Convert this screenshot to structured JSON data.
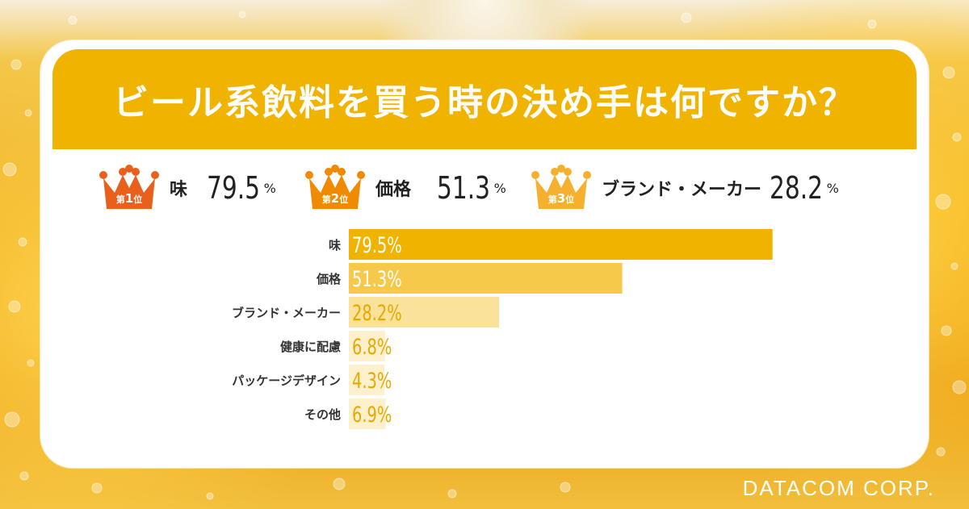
{
  "title": "ビール系飲料を買う時の決め手は何ですか？",
  "ranks": [
    {
      "badge_prefix": "第",
      "badge_num": "1",
      "badge_suffix": "位",
      "name": "味",
      "value": "79.5",
      "pct": "%",
      "color": "#e8601c"
    },
    {
      "badge_prefix": "第",
      "badge_num": "2",
      "badge_suffix": "位",
      "name": "価格",
      "value": "51.3",
      "pct": "%",
      "color": "#f08a00"
    },
    {
      "badge_prefix": "第",
      "badge_num": "3",
      "badge_suffix": "位",
      "name": "ブランド・メーカー",
      "value": "28.2",
      "pct": "%",
      "color": "#f5b12e"
    }
  ],
  "chart_data": {
    "type": "bar",
    "orientation": "horizontal",
    "categories": [
      "味",
      "価格",
      "ブランド・メーカー",
      "健康に配慮",
      "パッケージデザイン",
      "その他"
    ],
    "values": [
      79.5,
      51.3,
      28.2,
      6.8,
      4.3,
      6.9
    ],
    "data_labels": [
      "79.5%",
      "51.3%",
      "28.2%",
      "6.8%",
      "4.3%",
      "6.9%"
    ],
    "bar_colors": [
      "#f0b400",
      "#f6c94a",
      "#fae29a",
      "#fdf0cc",
      "#fdf0cc",
      "#fdf0cc"
    ],
    "label_colors": [
      "#ffffff",
      "#ffffff",
      "#e9a800",
      "#e9a800",
      "#e9a800",
      "#e9a800"
    ],
    "xlim": [
      0,
      100
    ],
    "grid": false
  },
  "footer": "DATACOM CORP."
}
